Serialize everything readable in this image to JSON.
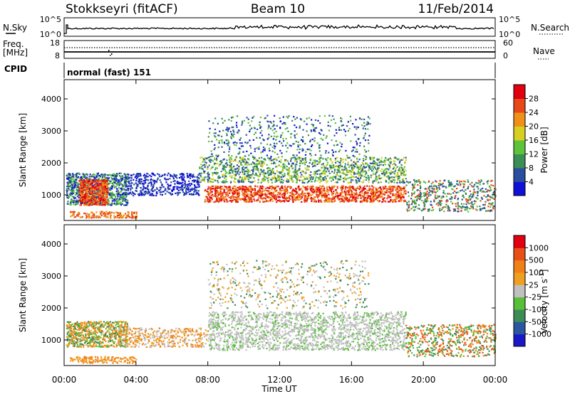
{
  "header": {
    "station": "Stokkseyri (fitACF)",
    "beam": "Beam 10",
    "date": "11/Feb/2014"
  },
  "nsky_panel": {
    "label": "N.Sky",
    "ticks_left": [
      "10^5",
      "10^0"
    ],
    "ticks_right": [
      "10^5",
      "10^0"
    ],
    "right_label": "N.Search"
  },
  "freq_panel": {
    "label_line1": "Freq.",
    "label_line2": "[MHz]",
    "ticks_left": [
      "18",
      "8"
    ],
    "ticks_right": [
      "60",
      "0"
    ],
    "right_label": "Nave"
  },
  "cpid_panel": {
    "label": "CPID",
    "value": "normal (fast) 151"
  },
  "chart_data": [
    {
      "type": "heatmap",
      "name": "power",
      "ylabel": "Slant Range [km]",
      "yticks": [
        "1000",
        "2000",
        "3000",
        "4000"
      ],
      "ylim": [
        200,
        4600
      ],
      "colorbar_label": "Power [dB]",
      "colorbar_ticks": [
        "4",
        "8",
        "12",
        "16",
        "20",
        "24",
        "28"
      ],
      "colorbar_colors": [
        "#1010d8",
        "#2a4f9e",
        "#3b8f56",
        "#5cc33a",
        "#d8d020",
        "#f09018",
        "#e84818",
        "#e00010"
      ]
    },
    {
      "type": "heatmap",
      "name": "velocity",
      "ylabel": "Slant Range [km]",
      "yticks": [
        "1000",
        "2000",
        "3000",
        "4000"
      ],
      "ylim": [
        200,
        4600
      ],
      "colorbar_label": "Velocity [m s",
      "colorbar_label_sup": "-1",
      "colorbar_label_end": "]",
      "colorbar_ticks": [
        "1000",
        "500",
        "100",
        "25",
        "-25",
        "-100",
        "-500",
        "-1000"
      ],
      "colorbar_colors": [
        "#1818c8",
        "#2a58a0",
        "#3c8c58",
        "#58c038",
        "#c0c0c0",
        "#f0a020",
        "#f08018",
        "#e85018",
        "#e00010"
      ]
    }
  ],
  "time_axis": {
    "label": "Time UT",
    "ticks": [
      "00:00",
      "04:00",
      "08:00",
      "12:00",
      "16:00",
      "20:00",
      "00:00"
    ]
  }
}
